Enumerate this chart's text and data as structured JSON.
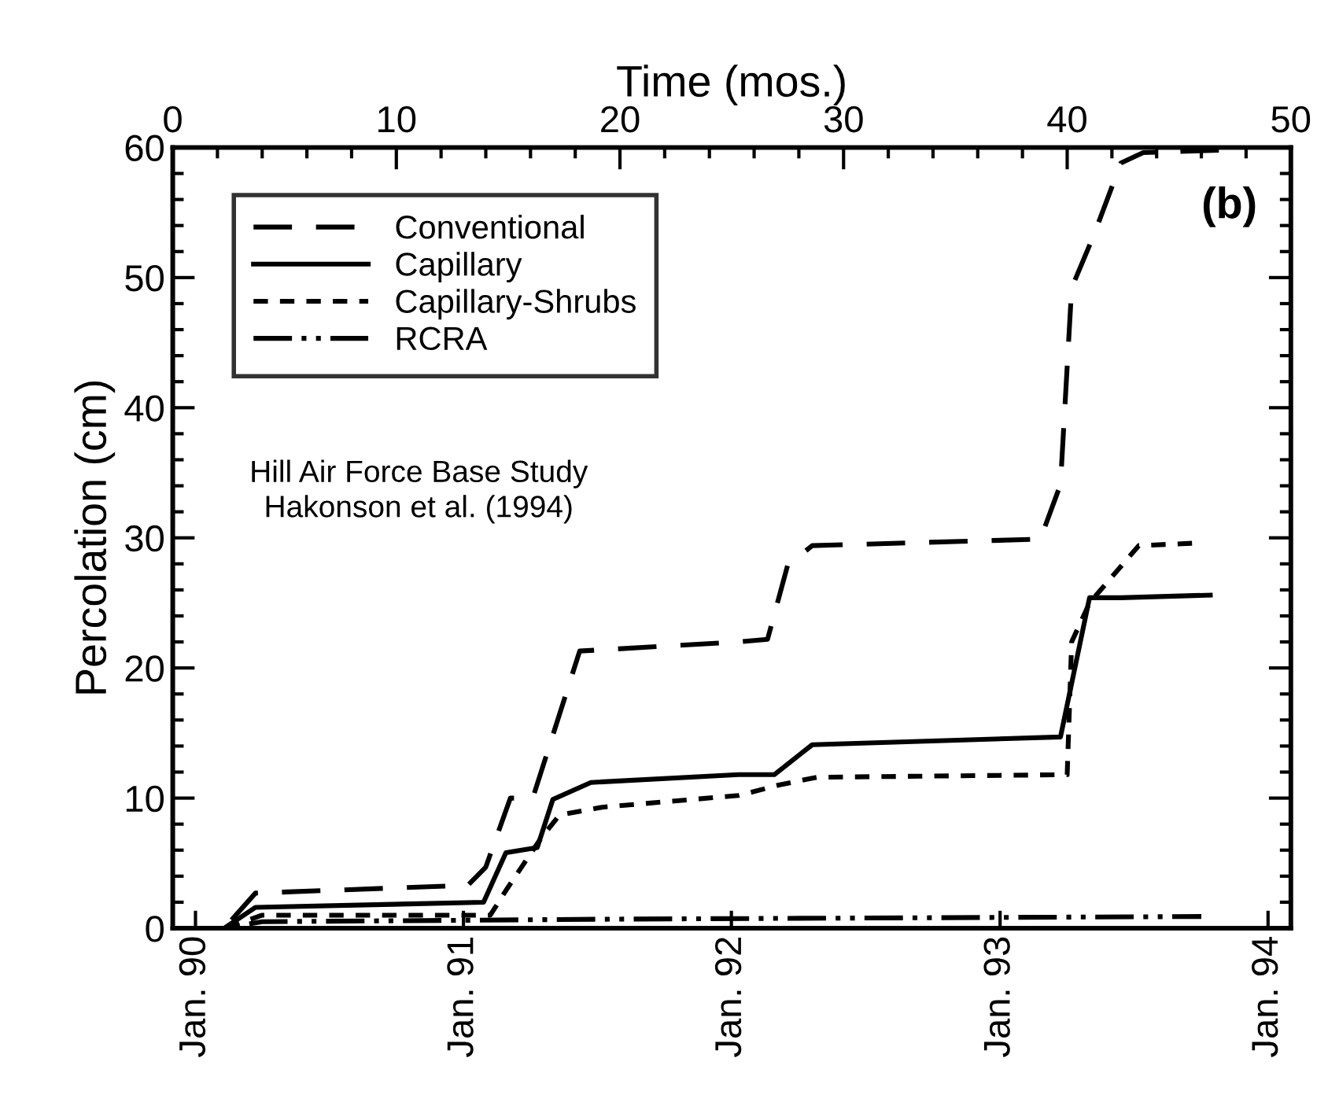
{
  "chart_data": {
    "type": "line",
    "ylabel": "Percolation (cm)",
    "xlabel": "Time (mos.)",
    "xlim": [
      0,
      50
    ],
    "xticks": [
      0,
      10,
      20,
      30,
      40,
      50
    ],
    "x2lim": [
      "1989-12",
      "1994-02"
    ],
    "x2ticks": [
      {
        "value": "1990-01",
        "label": "Jan. 90"
      },
      {
        "value": "1991-01",
        "label": "Jan. 91"
      },
      {
        "value": "1992-01",
        "label": "Jan. 92"
      },
      {
        "value": "1993-01",
        "label": "Jan. 93"
      },
      {
        "value": "1994-01",
        "label": "Jan. 94"
      }
    ],
    "ylim": [
      0,
      60
    ],
    "yticks": [
      0,
      10,
      20,
      30,
      40,
      50,
      60
    ],
    "grid": false,
    "legend": "top left",
    "marker": "none",
    "annotations": [
      "(b)",
      "Hill Air Force Base Study",
      "Hakonson et al. (1994)"
    ],
    "series": [
      {
        "name": "Conventional",
        "color": "#000000",
        "line_style": "long dashed",
        "x": [
          0,
          2.3,
          3.7,
          13.2,
          14.0,
          15.1,
          16.1,
          18.2,
          25.3,
          26.6,
          27.5,
          28.6,
          38.8,
          39.7,
          40.2,
          41.2,
          42.4,
          43.4,
          47
        ],
        "values": [
          0,
          0,
          2.7,
          3.3,
          4.7,
          10,
          10,
          21.3,
          22,
          22.2,
          27.9,
          29.4,
          29.9,
          34.1,
          49.2,
          53.3,
          58.8,
          59.6,
          59.8
        ]
      },
      {
        "name": "Capillary",
        "color": "#000000",
        "line_style": "solid",
        "x": [
          0,
          2.3,
          3.7,
          13.9,
          14.9,
          16.3,
          17.0,
          18.7,
          25.3,
          26.9,
          28.6,
          39.7,
          41.0,
          42.4,
          46.4
        ],
        "values": [
          0,
          0,
          1.6,
          2.0,
          5.8,
          6.2,
          9.9,
          11.2,
          11.8,
          11.8,
          14.1,
          14.7,
          25.4,
          25.4,
          25.6
        ]
      },
      {
        "name": "Capillary-Shrubs",
        "color": "#000000",
        "line_style": "short dashed",
        "x": [
          0,
          2.3,
          4.0,
          14.2,
          14.9,
          16.5,
          17.3,
          19.2,
          25.3,
          27.1,
          28.8,
          40.0,
          40.2,
          41.0,
          43.2,
          45.8
        ],
        "values": [
          0,
          0,
          1.0,
          1.0,
          2.9,
          7.0,
          8.7,
          9.3,
          10.2,
          11.0,
          11.6,
          11.8,
          22.0,
          25.0,
          29.4,
          29.6
        ]
      },
      {
        "name": "RCRA",
        "color": "#000000",
        "line_style": "dash-dot-dot",
        "x": [
          0,
          2.3,
          4.0,
          20,
          46
        ],
        "values": [
          0,
          0,
          0.5,
          0.7,
          0.9
        ]
      }
    ]
  }
}
